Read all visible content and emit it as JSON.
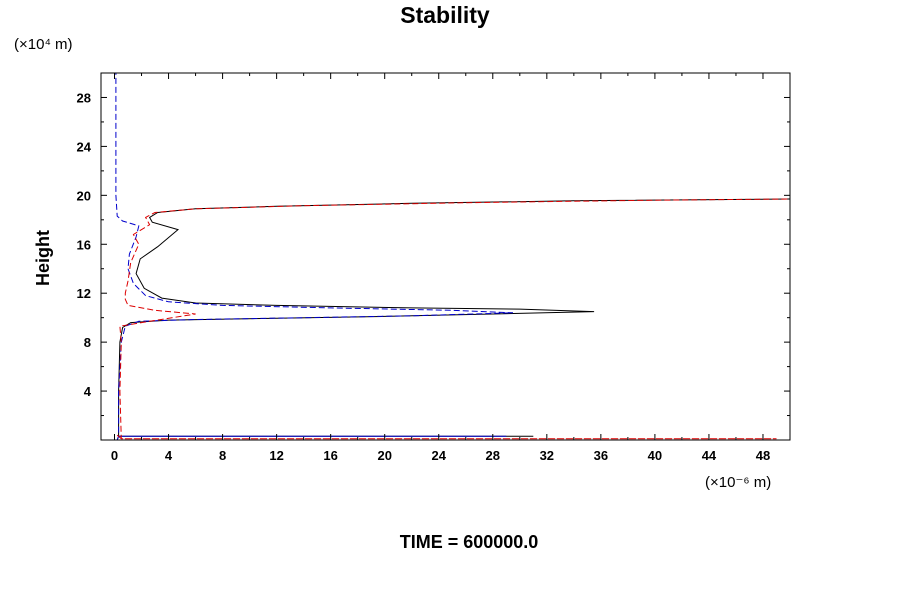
{
  "chart_data": {
    "type": "line",
    "title": "Stability",
    "ylabel": "Height",
    "y_unit": "(×10⁴ m)",
    "x_unit": "(×10⁻⁶ m)",
    "footer": "TIME = 600000.0",
    "xlim": [
      -1,
      50
    ],
    "ylim": [
      0,
      30
    ],
    "xticks": [
      0,
      4,
      8,
      12,
      16,
      20,
      24,
      28,
      32,
      36,
      40,
      44,
      48
    ],
    "xtick_labels": [
      "0",
      "4",
      "8",
      "12",
      "16",
      "20",
      "24",
      "28",
      "32",
      "36",
      "40",
      "44",
      "48"
    ],
    "yticks": [
      4,
      8,
      12,
      16,
      20,
      24,
      28
    ],
    "ytick_labels": [
      "4",
      "8",
      "12",
      "16",
      "20",
      "24",
      "28"
    ],
    "grid": false,
    "series": [
      {
        "color": "#000000",
        "dash": "solid",
        "points": [
          [
            0.2,
            0
          ],
          [
            0.3,
            0.3
          ],
          [
            31,
            0.3
          ],
          [
            0.3,
            0.3
          ],
          [
            0.3,
            4
          ],
          [
            0.4,
            8
          ],
          [
            0.6,
            9.2
          ],
          [
            1.2,
            9.6
          ],
          [
            4,
            9.8
          ],
          [
            12,
            9.95
          ],
          [
            20,
            10.1
          ],
          [
            28,
            10.3
          ],
          [
            35.5,
            10.5
          ],
          [
            30,
            10.7
          ],
          [
            22,
            10.8
          ],
          [
            12,
            11.0
          ],
          [
            6,
            11.2
          ],
          [
            3.5,
            11.6
          ],
          [
            2.2,
            12.4
          ],
          [
            1.6,
            13.6
          ],
          [
            1.9,
            14.8
          ],
          [
            3.2,
            15.8
          ],
          [
            4.7,
            17.2
          ],
          [
            2.8,
            17.8
          ],
          [
            2.6,
            18.2
          ],
          [
            3.2,
            18.6
          ],
          [
            6,
            18.9
          ],
          [
            12,
            19.1
          ],
          [
            22,
            19.35
          ],
          [
            34,
            19.55
          ],
          [
            50,
            19.7
          ]
        ]
      },
      {
        "color": "#0000cc",
        "dash": "dashed",
        "points": [
          [
            0.2,
            0
          ],
          [
            0.3,
            0.3
          ],
          [
            29,
            0.3
          ],
          [
            0.3,
            0.3
          ],
          [
            0.3,
            4
          ],
          [
            0.5,
            8
          ],
          [
            0.8,
            9.3
          ],
          [
            1.8,
            9.7
          ],
          [
            6,
            9.85
          ],
          [
            14,
            10.0
          ],
          [
            22,
            10.15
          ],
          [
            29.5,
            10.4
          ],
          [
            25,
            10.6
          ],
          [
            16,
            10.8
          ],
          [
            8,
            11.0
          ],
          [
            4,
            11.3
          ],
          [
            2.3,
            11.8
          ],
          [
            1.4,
            12.8
          ],
          [
            1,
            14
          ],
          [
            1.1,
            15.2
          ],
          [
            1.6,
            16.6
          ],
          [
            1.8,
            17.5
          ],
          [
            0.6,
            17.9
          ],
          [
            0.2,
            18.3
          ],
          [
            0.1,
            20
          ],
          [
            0.1,
            30
          ]
        ]
      },
      {
        "color": "#dd0000",
        "dash": "dashed",
        "points": [
          [
            0.2,
            0.4
          ],
          [
            0.5,
            0.1
          ],
          [
            49,
            0.1
          ],
          [
            0.5,
            0.1
          ],
          [
            0.4,
            4
          ],
          [
            0.5,
            8
          ],
          [
            0.4,
            9.3
          ],
          [
            2,
            9.6
          ],
          [
            6,
            10.3
          ],
          [
            3,
            10.6
          ],
          [
            1,
            11.0
          ],
          [
            0.8,
            11.5
          ],
          [
            0.8,
            12
          ],
          [
            1,
            13
          ],
          [
            1.2,
            14.5
          ],
          [
            1.8,
            16
          ],
          [
            1.4,
            16.8
          ],
          [
            2.6,
            17.6
          ],
          [
            2.3,
            18.2
          ],
          [
            3,
            18.6
          ],
          [
            6,
            18.9
          ],
          [
            14,
            19.15
          ],
          [
            26,
            19.4
          ],
          [
            40,
            19.6
          ],
          [
            50,
            19.7
          ]
        ]
      }
    ]
  }
}
